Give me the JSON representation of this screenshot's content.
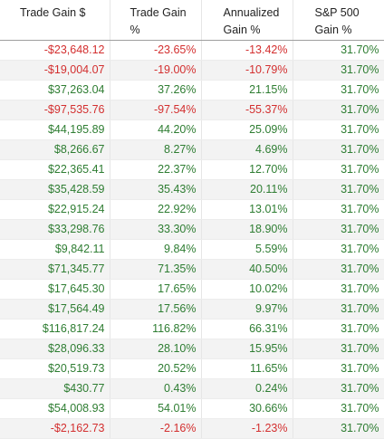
{
  "headers": {
    "trade_gain_dollar": "Trade Gain $",
    "trade_gain_pct": "Trade Gain %",
    "annualized_line1": "Annualized",
    "annualized_line2": "Gain %",
    "sp500_line1": "S&P 500",
    "sp500_line2": "Gain %"
  },
  "colors": {
    "positive": "#2e7d32",
    "negative": "#d32f2f"
  },
  "rows": [
    {
      "gain_dollar": "-$23,648.12",
      "gain_pct": "-23.65%",
      "annualized": "-13.42%",
      "sp500": "31.70%"
    },
    {
      "gain_dollar": "-$19,004.07",
      "gain_pct": "-19.00%",
      "annualized": "-10.79%",
      "sp500": "31.70%"
    },
    {
      "gain_dollar": "$37,263.04",
      "gain_pct": "37.26%",
      "annualized": "21.15%",
      "sp500": "31.70%"
    },
    {
      "gain_dollar": "-$97,535.76",
      "gain_pct": "-97.54%",
      "annualized": "-55.37%",
      "sp500": "31.70%"
    },
    {
      "gain_dollar": "$44,195.89",
      "gain_pct": "44.20%",
      "annualized": "25.09%",
      "sp500": "31.70%"
    },
    {
      "gain_dollar": "$8,266.67",
      "gain_pct": "8.27%",
      "annualized": "4.69%",
      "sp500": "31.70%"
    },
    {
      "gain_dollar": "$22,365.41",
      "gain_pct": "22.37%",
      "annualized": "12.70%",
      "sp500": "31.70%"
    },
    {
      "gain_dollar": "$35,428.59",
      "gain_pct": "35.43%",
      "annualized": "20.11%",
      "sp500": "31.70%"
    },
    {
      "gain_dollar": "$22,915.24",
      "gain_pct": "22.92%",
      "annualized": "13.01%",
      "sp500": "31.70%"
    },
    {
      "gain_dollar": "$33,298.76",
      "gain_pct": "33.30%",
      "annualized": "18.90%",
      "sp500": "31.70%"
    },
    {
      "gain_dollar": "$9,842.11",
      "gain_pct": "9.84%",
      "annualized": "5.59%",
      "sp500": "31.70%"
    },
    {
      "gain_dollar": "$71,345.77",
      "gain_pct": "71.35%",
      "annualized": "40.50%",
      "sp500": "31.70%"
    },
    {
      "gain_dollar": "$17,645.30",
      "gain_pct": "17.65%",
      "annualized": "10.02%",
      "sp500": "31.70%"
    },
    {
      "gain_dollar": "$17,564.49",
      "gain_pct": "17.56%",
      "annualized": "9.97%",
      "sp500": "31.70%"
    },
    {
      "gain_dollar": "$116,817.24",
      "gain_pct": "116.82%",
      "annualized": "66.31%",
      "sp500": "31.70%"
    },
    {
      "gain_dollar": "$28,096.33",
      "gain_pct": "28.10%",
      "annualized": "15.95%",
      "sp500": "31.70%"
    },
    {
      "gain_dollar": "$20,519.73",
      "gain_pct": "20.52%",
      "annualized": "11.65%",
      "sp500": "31.70%"
    },
    {
      "gain_dollar": "$430.77",
      "gain_pct": "0.43%",
      "annualized": "0.24%",
      "sp500": "31.70%"
    },
    {
      "gain_dollar": "$54,008.93",
      "gain_pct": "54.01%",
      "annualized": "30.66%",
      "sp500": "31.70%"
    },
    {
      "gain_dollar": "-$2,162.73",
      "gain_pct": "-2.16%",
      "annualized": "-1.23%",
      "sp500": "31.70%"
    }
  ]
}
